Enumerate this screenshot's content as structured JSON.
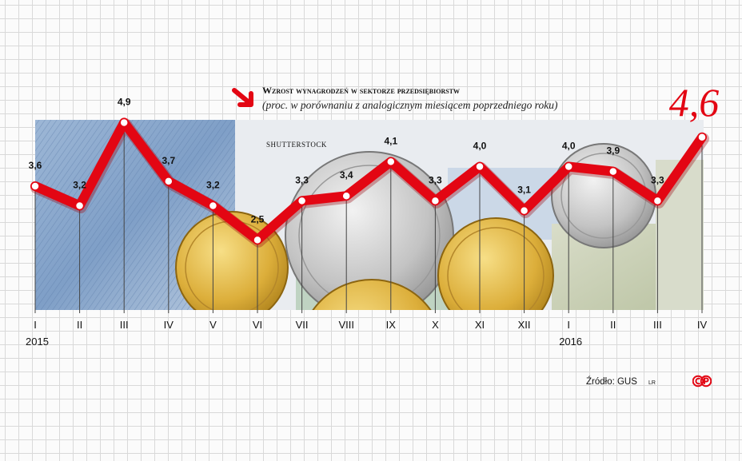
{
  "title": "Wzrost wynagrodzeń w sektorze przedsiębiorstw",
  "subtitle": "(proc. w porównaniu z analogicznym miesiącem poprzedniego roku)",
  "photo_credit": "SHUTTERSTOCK",
  "source": "Źródło: GUS",
  "author_initials": "LR",
  "colors": {
    "line": "#e30613",
    "marker": "#ffffff",
    "text": "#111111"
  },
  "icons": {
    "title_marker": "red-down-right-arrow-icon",
    "logo": "publisher-logo-icon"
  },
  "chart_data": {
    "type": "line",
    "title": "Wzrost wynagrodzeń w sektorze przedsiębiorstw",
    "subtitle": "(proc. w porównaniu z analogicznym miesiącem poprzedniego roku)",
    "x": [
      "I",
      "II",
      "III",
      "IV",
      "V",
      "VI",
      "VII",
      "VIII",
      "IX",
      "X",
      "XI",
      "XII",
      "I",
      "II",
      "III",
      "IV"
    ],
    "year_labels": [
      {
        "label": "2015",
        "at_index": 0
      },
      {
        "label": "2016",
        "at_index": 12
      }
    ],
    "values": [
      3.6,
      3.2,
      4.9,
      3.7,
      3.2,
      2.5,
      3.3,
      3.4,
      4.1,
      3.3,
      4.0,
      3.1,
      4.0,
      3.9,
      3.3,
      4.6
    ],
    "value_labels": [
      "3,6",
      "3,2",
      "4,9",
      "3,7",
      "3,2",
      "2,5",
      "3,3",
      "3,4",
      "4,1",
      "3,3",
      "4,0",
      "3,1",
      "4,0",
      "3,9",
      "3,3",
      "4,6"
    ],
    "highlight_last": true,
    "grid": true
  }
}
